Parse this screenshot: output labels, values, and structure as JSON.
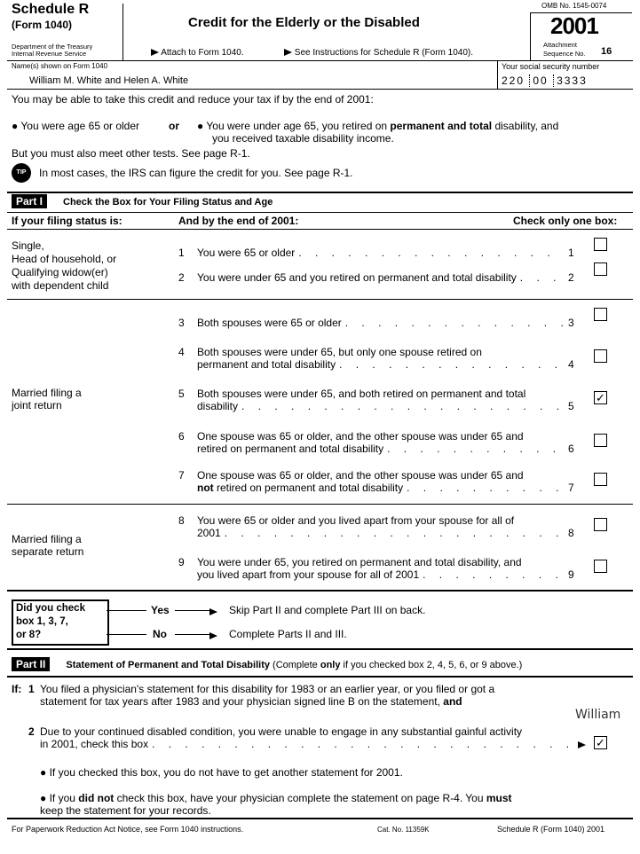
{
  "header": {
    "form_name": "Schedule R",
    "form_sub": "(Form 1040)",
    "dept_line1": "Department of the Treasury",
    "dept_line2": "Internal Revenue Service",
    "title": "Credit for the Elderly or the Disabled",
    "attach": "Attach to Form 1040.",
    "see_instructions": "See Instructions for Schedule R (Form 1040).",
    "omb": "OMB No. 1545-0074",
    "year": "2001",
    "attachment": "Attachment",
    "sequence": "Sequence No.",
    "sequence_no": "16"
  },
  "taxpayer": {
    "name_label": "Name(s) shown on Form 1040",
    "name": "William M. White and Helen A. White",
    "ssn_label": "Your social security number",
    "ssn_1": "220",
    "ssn_2": "00",
    "ssn_3": "3333"
  },
  "intro": {
    "line1": "You may be able to take this credit and reduce your tax if by the end of 2001:",
    "opt1": "You were age 65 or older",
    "or": "or",
    "opt2_a": "You were under age 65, you retired on ",
    "opt2_b": "permanent and total",
    "opt2_c": " disability, and",
    "opt2_d": "you received taxable disability income.",
    "line3": "But you must also meet other tests. See page R-1.",
    "tip_icon": "TIP",
    "tip": "In most cases, the IRS can figure the credit for you. See page R-1."
  },
  "part1": {
    "label": "Part I",
    "title": "Check the Box for Your Filing Status and Age",
    "col1": "If your filing status is:",
    "col2": "And by the end of 2001:",
    "col3": "Check only one box:",
    "status_single": [
      "Single,",
      "Head of household, or",
      "Qualifying widow(er)",
      "with dependent child"
    ],
    "status_joint": [
      "Married filing a",
      "joint return"
    ],
    "status_separate": [
      "Married filing a",
      "separate return"
    ],
    "lines": [
      {
        "num": "1",
        "text": "You were 65 or older",
        "checked": false
      },
      {
        "num": "2",
        "text": "You were under 65 and you retired on permanent and total disability",
        "checked": false
      },
      {
        "num": "3",
        "text": "Both spouses were 65 or older",
        "checked": false
      },
      {
        "num": "4",
        "text_a": "Both spouses were under 65, but only one spouse retired on",
        "text_b": "permanent and total disability",
        "checked": false
      },
      {
        "num": "5",
        "text_a": "Both spouses were under 65, and both retired on permanent and total",
        "text_b": "disability",
        "checked": true
      },
      {
        "num": "6",
        "text_a": "One spouse was 65 or older, and the other spouse was under 65 and",
        "text_b": "retired on permanent and total disability",
        "checked": false
      },
      {
        "num": "7",
        "text_a": "One spouse was 65 or older, and the other spouse was under 65 and",
        "text_b_bold": "not",
        "text_b": " retired on permanent and total disability",
        "checked": false
      },
      {
        "num": "8",
        "text_a": "You were 65 or older and you lived apart from your spouse for all of",
        "text_b": "2001",
        "checked": false
      },
      {
        "num": "9",
        "text_a": "You were under 65, you retired on permanent and total disability, and",
        "text_b": "you lived apart from your spouse for all of 2001",
        "checked": false
      }
    ],
    "check_mark": "✓",
    "question": [
      "Did you check",
      "box 1, 3, 7,",
      "or 8?"
    ],
    "yes": "Yes",
    "yes_text": "Skip Part II and complete Part III on back.",
    "no": "No",
    "no_text": "Complete Parts II and III."
  },
  "part2": {
    "label": "Part II",
    "title": "Statement of Permanent and Total Disability",
    "note_a": " (Complete ",
    "note_b": "only",
    "note_c": " if you checked box 2, 4, 5, 6, or 9 above.)",
    "if": "If:",
    "l1_num": "1",
    "l1_a": "You filed a physician's statement for this disability for 1983 or an earlier year, or you filed or got a",
    "l1_b": "statement for tax years after 1983 and your physician signed line B on the statement, ",
    "l1_and": "and",
    "signature": "William",
    "l2_num": "2",
    "l2_a": "Due to your continued disabled condition, you were unable to engage in any substantial gainful activity",
    "l2_b": "in 2001, check this box",
    "l2_checked": true,
    "b1": "If you checked this box, you do not have to get another statement for 2001.",
    "b2_a": "If you ",
    "b2_b": "did not",
    "b2_c": " check this box, have your physician complete the statement on page R-4. You ",
    "b2_d": "must",
    "b2_e": "keep the statement for your records."
  },
  "footer": {
    "left": "For Paperwork Reduction Act Notice, see Form 1040 instructions.",
    "cat": "Cat. No. 11359K",
    "right": "Schedule R (Form 1040) 2001"
  }
}
